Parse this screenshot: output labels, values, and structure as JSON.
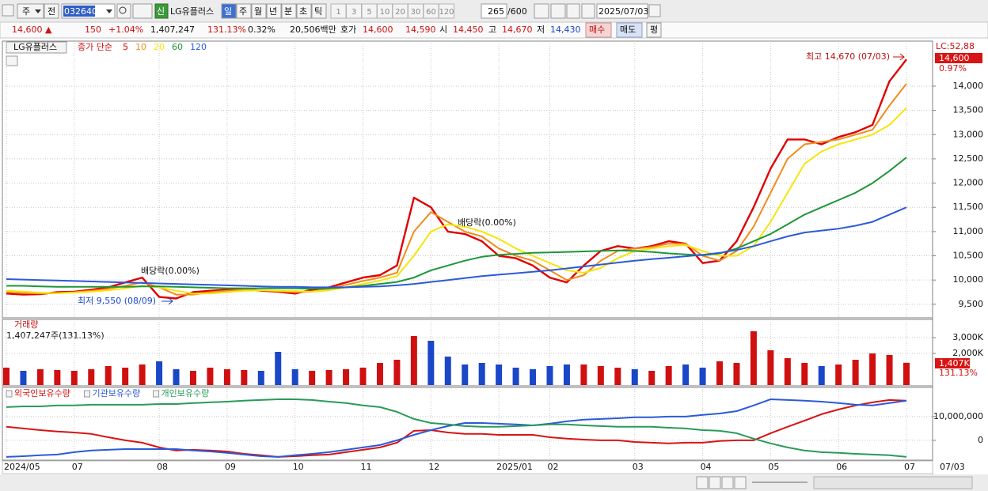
{
  "toolbar": {
    "market": "주",
    "prev": "전",
    "code": "032640",
    "flag": "신",
    "name": "LG유플러스",
    "periods": [
      "일",
      "주",
      "월",
      "년",
      "분",
      "초",
      "틱"
    ],
    "intervals": [
      "1",
      "3",
      "5",
      "10",
      "20",
      "30",
      "60",
      "120"
    ],
    "count": "265",
    "max": "/600",
    "date": "2025/07/03"
  },
  "info_bar": {
    "price": "14,600 ▲",
    "change": "150",
    "change_pct": "+1.04%",
    "volume": "1,407,247",
    "volume_ratio": "131.13%",
    "turnover": "0.32%",
    "amount": "20,506백만",
    "quote_label": "호가",
    "ask": "14,600",
    "bid": "14,590",
    "open_label": "시",
    "open": "14,450",
    "high_label": "고",
    "high": "14,670",
    "low_label": "저",
    "low": "14,430",
    "buy": "매수",
    "sell": "매도",
    "eval": "평"
  },
  "chart_data": [
    {
      "type": "line",
      "title": "LG유플러스",
      "legend_title": "종가 단순",
      "categories": [
        "2024/05",
        null,
        null,
        null,
        "07",
        null,
        null,
        null,
        null,
        "08",
        null,
        null,
        null,
        "09",
        null,
        null,
        null,
        "10",
        null,
        null,
        null,
        "11",
        null,
        null,
        null,
        "12",
        null,
        null,
        null,
        "2025/01",
        null,
        null,
        "02",
        null,
        null,
        null,
        null,
        "03",
        null,
        null,
        null,
        "04",
        null,
        null,
        null,
        "05",
        null,
        null,
        null,
        "06",
        null,
        null,
        null,
        "07"
      ],
      "x_end_label": "07/03",
      "series": [
        {
          "name": "5",
          "color": "#e00000",
          "values": [
            9720,
            9700,
            9710,
            9750,
            9760,
            9800,
            9850,
            9950,
            10050,
            9650,
            9620,
            9750,
            9780,
            9800,
            9820,
            9780,
            9760,
            9720,
            9800,
            9850,
            9950,
            10050,
            10100,
            10300,
            11700,
            11500,
            11000,
            10950,
            10800,
            10500,
            10450,
            10300,
            10050,
            9950,
            10300,
            10600,
            10700,
            10650,
            10700,
            10800,
            10750,
            10350,
            10400,
            10800,
            11500,
            12300,
            12900,
            12900,
            12800,
            12950,
            13050,
            13200,
            14100,
            14550
          ]
        },
        {
          "name": "10",
          "color": "#f08c1c",
          "values": [
            9750,
            9730,
            9720,
            9730,
            9750,
            9780,
            9820,
            9880,
            9950,
            9850,
            9700,
            9700,
            9750,
            9780,
            9800,
            9790,
            9770,
            9750,
            9760,
            9820,
            9900,
            9980,
            10050,
            10150,
            11000,
            11400,
            11200,
            11000,
            10900,
            10650,
            10500,
            10400,
            10200,
            10000,
            10100,
            10400,
            10600,
            10650,
            10680,
            10750,
            10750,
            10500,
            10400,
            10600,
            11100,
            11800,
            12500,
            12800,
            12850,
            12900,
            13000,
            13100,
            13600,
            14050
          ]
        },
        {
          "name": "20",
          "color": "#f5e50a",
          "values": [
            9780,
            9760,
            9740,
            9730,
            9740,
            9760,
            9790,
            9830,
            9880,
            9850,
            9780,
            9720,
            9720,
            9750,
            9780,
            9790,
            9780,
            9770,
            9760,
            9790,
            9850,
            9920,
            9990,
            10080,
            10500,
            11000,
            11150,
            11100,
            11000,
            10850,
            10650,
            10500,
            10350,
            10200,
            10150,
            10250,
            10450,
            10600,
            10650,
            10700,
            10720,
            10600,
            10500,
            10500,
            10700,
            11200,
            11800,
            12400,
            12650,
            12800,
            12900,
            13000,
            13200,
            13550
          ]
        },
        {
          "name": "60",
          "color": "#1e9638",
          "values": [
            9880,
            9880,
            9870,
            9860,
            9860,
            9860,
            9860,
            9860,
            9870,
            9870,
            9860,
            9850,
            9840,
            9830,
            9830,
            9830,
            9830,
            9830,
            9820,
            9830,
            9850,
            9880,
            9920,
            9960,
            10050,
            10200,
            10300,
            10400,
            10480,
            10520,
            10540,
            10560,
            10570,
            10580,
            10590,
            10600,
            10610,
            10600,
            10580,
            10550,
            10530,
            10510,
            10550,
            10650,
            10800,
            10950,
            11150,
            11350,
            11500,
            11650,
            11800,
            12000,
            12250,
            12530
          ]
        },
        {
          "name": "120",
          "color": "#2c5ad8",
          "values": [
            10020,
            10010,
            10000,
            9990,
            9980,
            9970,
            9960,
            9950,
            9940,
            9930,
            9920,
            9910,
            9900,
            9890,
            9880,
            9870,
            9860,
            9860,
            9850,
            9850,
            9850,
            9860,
            9870,
            9890,
            9920,
            9960,
            10000,
            10040,
            10080,
            10110,
            10140,
            10170,
            10200,
            10240,
            10280,
            10320,
            10360,
            10400,
            10430,
            10460,
            10490,
            10520,
            10560,
            10620,
            10700,
            10800,
            10900,
            10980,
            11020,
            11060,
            11120,
            11200,
            11350,
            11500
          ]
        }
      ],
      "ylim": [
        9220,
        14880
      ],
      "yticks": [
        {
          "value": 9500,
          "label": "9,500"
        },
        {
          "value": 10000,
          "label": "10,000"
        },
        {
          "value": 10500,
          "label": "10,500"
        },
        {
          "value": 11000,
          "label": "11,000"
        },
        {
          "value": 11500,
          "label": "11,500"
        },
        {
          "value": 12000,
          "label": "12,000"
        },
        {
          "value": 12500,
          "label": "12,500"
        },
        {
          "value": 13000,
          "label": "13,000"
        },
        {
          "value": 13500,
          "label": "13,500"
        },
        {
          "value": 14000,
          "label": "14,000"
        }
      ],
      "grid": true,
      "annotations": [
        "최고 14,670 (07/03)",
        "최저 9,550 (08/09)",
        "배당락(0.00%)",
        "배당락(0.00%)"
      ],
      "lc_label": "LC:52,88",
      "last_label": "14,600",
      "change_label": "0.97%"
    },
    {
      "type": "bar",
      "title": "거래량",
      "subtitle": "1,407,247주(131.13%)",
      "up_color": "#d01010",
      "down_color": "#1a46c8",
      "values": [
        1100000,
        900000,
        1000000,
        950000,
        900000,
        1000000,
        1200000,
        1100000,
        1300000,
        1500000,
        1000000,
        900000,
        1100000,
        1000000,
        950000,
        900000,
        2100000,
        1000000,
        900000,
        950000,
        1000000,
        1100000,
        1400000,
        1600000,
        3100000,
        2800000,
        1800000,
        1300000,
        1400000,
        1300000,
        1100000,
        1000000,
        1200000,
        1300000,
        1300000,
        1200000,
        1100000,
        1000000,
        900000,
        1200000,
        1300000,
        1100000,
        1500000,
        1400000,
        3400000,
        2200000,
        1700000,
        1400000,
        1200000,
        1300000,
        1600000,
        2000000,
        1900000,
        1407247
      ],
      "ylim": [
        0,
        4100000
      ],
      "yticks": [
        {
          "value": 2000000,
          "label": "2,000K"
        },
        {
          "value": 3000000,
          "label": "3,000K"
        }
      ],
      "grid": true,
      "last_label": "1,407K",
      "ratio_label": "131.13%"
    },
    {
      "type": "line",
      "series": [
        {
          "name": "외국인보유수량",
          "color": "#d81414",
          "values": [
            5700000,
            5000000,
            4300000,
            3700000,
            3300000,
            2700000,
            1300000,
            0,
            -1000000,
            -3000000,
            -4300000,
            -4000000,
            -4300000,
            -4700000,
            -5700000,
            -6300000,
            -7000000,
            -6700000,
            -6300000,
            -6000000,
            -5000000,
            -4000000,
            -3000000,
            -1000000,
            4000000,
            4300000,
            3300000,
            2700000,
            2700000,
            2300000,
            2300000,
            2300000,
            1300000,
            700000,
            300000,
            0,
            0,
            -700000,
            -1000000,
            -1300000,
            -1000000,
            -1000000,
            -300000,
            0,
            0,
            3000000,
            5700000,
            8300000,
            11000000,
            13000000,
            14700000,
            16000000,
            17000000,
            16700000
          ]
        },
        {
          "name": "기관보유수량",
          "color": "#2c5ad8",
          "values": [
            -7000000,
            -6700000,
            -6300000,
            -6000000,
            -5000000,
            -4300000,
            -4000000,
            -3700000,
            -3700000,
            -3700000,
            -3700000,
            -4300000,
            -4700000,
            -5300000,
            -6000000,
            -6700000,
            -7000000,
            -6300000,
            -5700000,
            -5000000,
            -4000000,
            -3000000,
            -2000000,
            0,
            2300000,
            4300000,
            6000000,
            7300000,
            7300000,
            7000000,
            6700000,
            6300000,
            7000000,
            8000000,
            8700000,
            9000000,
            9300000,
            9700000,
            9700000,
            10000000,
            10000000,
            10700000,
            11300000,
            12300000,
            14700000,
            17300000,
            17000000,
            16700000,
            16300000,
            15700000,
            15000000,
            14700000,
            15700000,
            16700000
          ]
        },
        {
          "name": "개인보유수량",
          "color": "#2a9a5a",
          "values": [
            14000000,
            14300000,
            14300000,
            14700000,
            14700000,
            15000000,
            15000000,
            15000000,
            15000000,
            15300000,
            15300000,
            15700000,
            16000000,
            16300000,
            16700000,
            17000000,
            17300000,
            17300000,
            17000000,
            16300000,
            15700000,
            14700000,
            14000000,
            12000000,
            9000000,
            7300000,
            6700000,
            6000000,
            5700000,
            5700000,
            6000000,
            6300000,
            6700000,
            6700000,
            6300000,
            6000000,
            5700000,
            5700000,
            5700000,
            5300000,
            5000000,
            4300000,
            4000000,
            3000000,
            700000,
            -1300000,
            -3000000,
            -4300000,
            -5000000,
            -5300000,
            -5700000,
            -6000000,
            -6300000,
            -7000000
          ]
        }
      ],
      "ylim": [
        -7700000,
        21300000
      ],
      "yticks": [
        {
          "value": 10000000,
          "label": "10,000,000"
        },
        0
      ],
      "grid": true
    }
  ]
}
